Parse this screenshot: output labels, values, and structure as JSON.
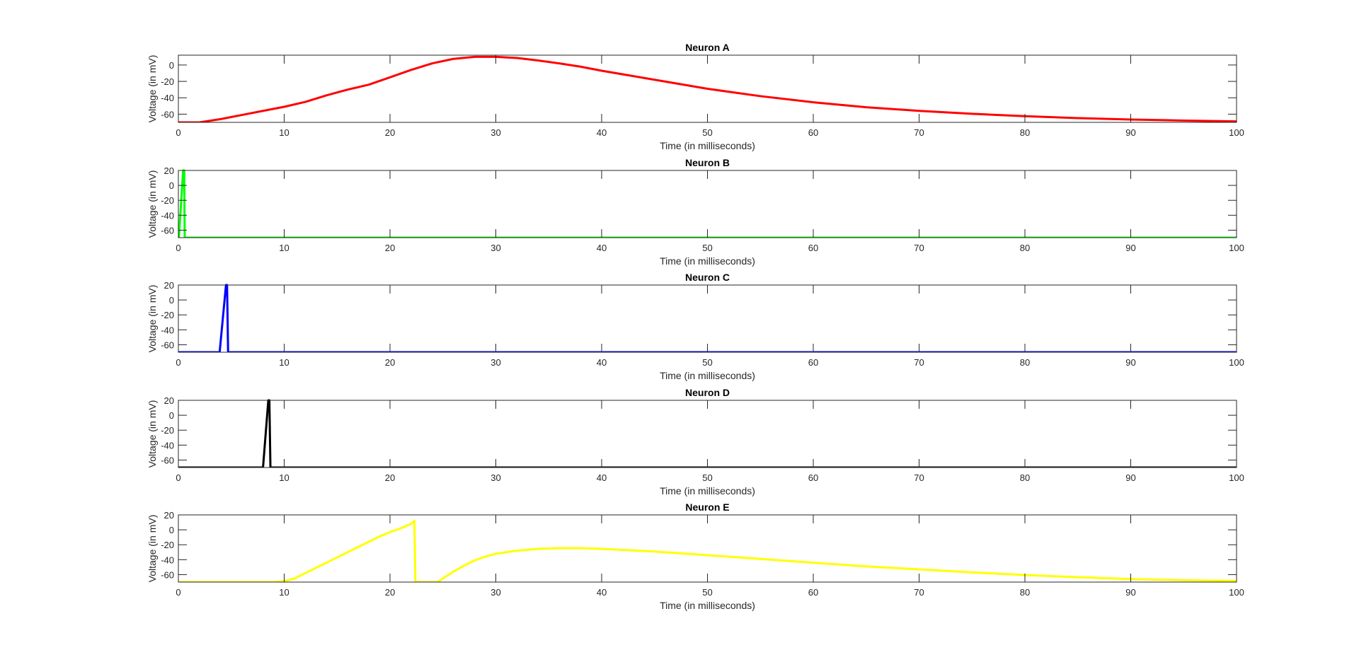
{
  "figure": {
    "background": "#ffffff"
  },
  "chart_data": [
    {
      "type": "line",
      "title": "Neuron A",
      "xlabel": "Time (in milliseconds)",
      "ylabel": "Voltage (in mV)",
      "xlim": [
        0,
        100
      ],
      "ylim": [
        -70,
        12
      ],
      "xticks": [
        0,
        10,
        20,
        30,
        40,
        50,
        60,
        70,
        80,
        90,
        100
      ],
      "yticks": [
        -60,
        -40,
        -20,
        0
      ],
      "grid": false,
      "series": [
        {
          "color": "#ff0000",
          "points": [
            [
              0,
              -70
            ],
            [
              2,
              -70
            ],
            [
              4,
              -66
            ],
            [
              6,
              -61
            ],
            [
              8,
              -56
            ],
            [
              10,
              -51
            ],
            [
              12,
              -45
            ],
            [
              14,
              -37
            ],
            [
              16,
              -30
            ],
            [
              18,
              -24
            ],
            [
              20,
              -15
            ],
            [
              22,
              -6
            ],
            [
              24,
              2
            ],
            [
              26,
              7.5
            ],
            [
              28,
              10
            ],
            [
              30,
              10
            ],
            [
              32,
              8.5
            ],
            [
              34,
              5.5
            ],
            [
              36,
              2
            ],
            [
              38,
              -2
            ],
            [
              40,
              -7
            ],
            [
              45,
              -18
            ],
            [
              50,
              -29
            ],
            [
              55,
              -38
            ],
            [
              60,
              -45.5
            ],
            [
              65,
              -51.5
            ],
            [
              70,
              -56
            ],
            [
              75,
              -59.5
            ],
            [
              80,
              -62.5
            ],
            [
              85,
              -64.8
            ],
            [
              90,
              -66.5
            ],
            [
              95,
              -67.8
            ],
            [
              100,
              -68.8
            ]
          ]
        }
      ]
    },
    {
      "type": "line",
      "title": "Neuron B",
      "xlabel": "Time (in milliseconds)",
      "ylabel": "Voltage (in mV)",
      "xlim": [
        0,
        100
      ],
      "ylim": [
        -70,
        20
      ],
      "xticks": [
        0,
        10,
        20,
        30,
        40,
        50,
        60,
        70,
        80,
        90,
        100
      ],
      "yticks": [
        -60,
        -40,
        -20,
        0,
        20
      ],
      "grid": false,
      "series": [
        {
          "color": "#00ff00",
          "points": [
            [
              0,
              -70
            ],
            [
              0.05,
              -70
            ],
            [
              0.45,
              20
            ],
            [
              0.55,
              20
            ],
            [
              0.6,
              -70
            ],
            [
              100,
              -70
            ]
          ]
        }
      ]
    },
    {
      "type": "line",
      "title": "Neuron C",
      "xlabel": "Time (in milliseconds)",
      "ylabel": "Voltage (in mV)",
      "xlim": [
        0,
        100
      ],
      "ylim": [
        -70,
        20
      ],
      "xticks": [
        0,
        10,
        20,
        30,
        40,
        50,
        60,
        70,
        80,
        90,
        100
      ],
      "yticks": [
        -60,
        -40,
        -20,
        0,
        20
      ],
      "grid": false,
      "series": [
        {
          "color": "#0000ff",
          "points": [
            [
              0,
              -70
            ],
            [
              3.9,
              -70
            ],
            [
              4.5,
              20
            ],
            [
              4.6,
              20
            ],
            [
              4.7,
              -70
            ],
            [
              100,
              -70
            ]
          ]
        }
      ]
    },
    {
      "type": "line",
      "title": "Neuron D",
      "xlabel": "Time (in milliseconds)",
      "ylabel": "Voltage (in mV)",
      "xlim": [
        0,
        100
      ],
      "ylim": [
        -70,
        20
      ],
      "xticks": [
        0,
        10,
        20,
        30,
        40,
        50,
        60,
        70,
        80,
        90,
        100
      ],
      "yticks": [
        -60,
        -40,
        -20,
        0,
        20
      ],
      "grid": false,
      "series": [
        {
          "color": "#000000",
          "points": [
            [
              0,
              -70
            ],
            [
              8.0,
              -70
            ],
            [
              8.5,
              20
            ],
            [
              8.6,
              20
            ],
            [
              8.7,
              -70
            ],
            [
              100,
              -70
            ]
          ]
        }
      ]
    },
    {
      "type": "line",
      "title": "Neuron E",
      "xlabel": "Time (in milliseconds)",
      "ylabel": "Voltage (in mV)",
      "xlim": [
        0,
        100
      ],
      "ylim": [
        -70,
        20
      ],
      "xticks": [
        0,
        10,
        20,
        30,
        40,
        50,
        60,
        70,
        80,
        90,
        100
      ],
      "yticks": [
        -60,
        -40,
        -20,
        0,
        20
      ],
      "grid": false,
      "series": [
        {
          "color": "#ffff00",
          "points": [
            [
              0,
              -70
            ],
            [
              9,
              -70
            ],
            [
              10,
              -69
            ],
            [
              11,
              -65
            ],
            [
              12,
              -58
            ],
            [
              13,
              -51
            ],
            [
              14,
              -44
            ],
            [
              15,
              -37
            ],
            [
              16,
              -30
            ],
            [
              17,
              -23
            ],
            [
              18,
              -16
            ],
            [
              19,
              -9
            ],
            [
              20,
              -3
            ],
            [
              21,
              2
            ],
            [
              22,
              8
            ],
            [
              22.3,
              12
            ],
            [
              22.4,
              -70
            ],
            [
              24.5,
              -70
            ],
            [
              25,
              -65
            ],
            [
              26,
              -56
            ],
            [
              27,
              -48
            ],
            [
              28,
              -41
            ],
            [
              29,
              -36
            ],
            [
              30,
              -32
            ],
            [
              32,
              -28
            ],
            [
              34,
              -25.5
            ],
            [
              36,
              -24.5
            ],
            [
              38,
              -24.5
            ],
            [
              40,
              -25.5
            ],
            [
              45,
              -29
            ],
            [
              50,
              -34
            ],
            [
              55,
              -39
            ],
            [
              60,
              -44
            ],
            [
              65,
              -49
            ],
            [
              70,
              -53
            ],
            [
              75,
              -57
            ],
            [
              80,
              -60.5
            ],
            [
              85,
              -63.5
            ],
            [
              90,
              -66
            ],
            [
              95,
              -67.5
            ],
            [
              100,
              -68.5
            ]
          ]
        }
      ]
    }
  ]
}
